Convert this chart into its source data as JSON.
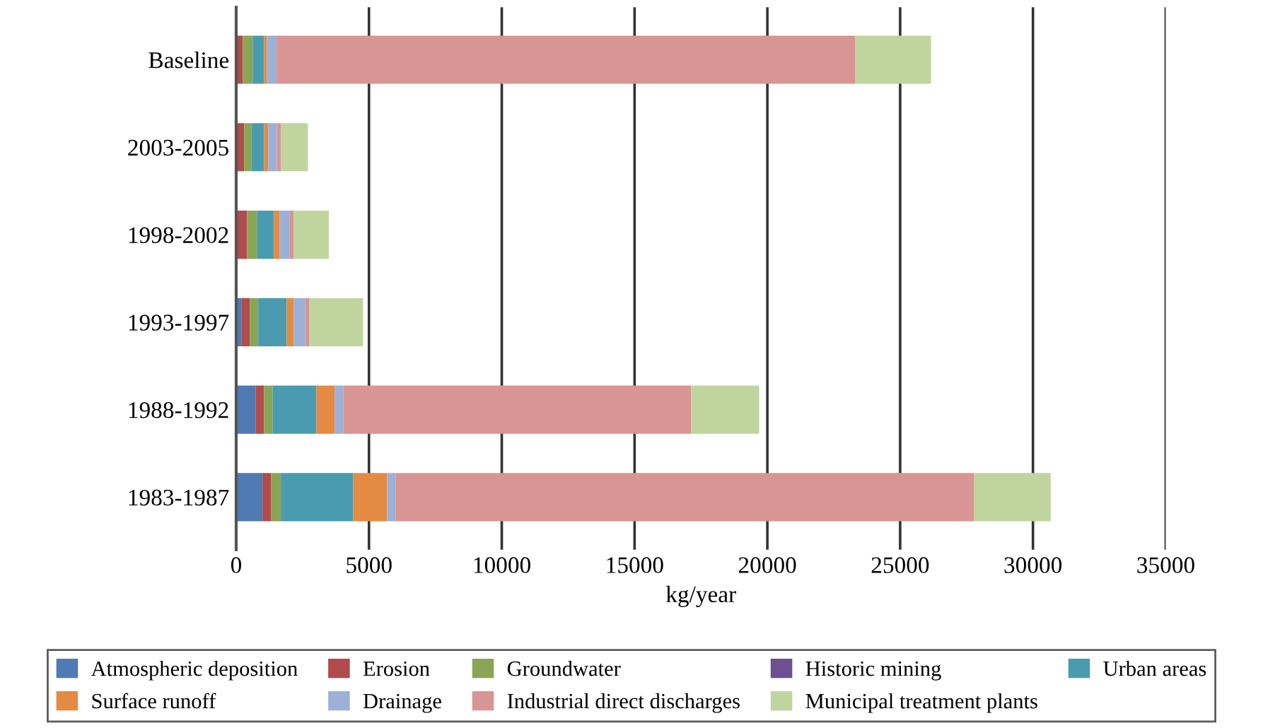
{
  "chart_data": {
    "type": "bar",
    "orientation": "horizontal",
    "stacked": true,
    "categories": [
      "Baseline",
      "2003-2005",
      "1998-2002",
      "1993-1997",
      "1988-1992",
      "1983-1987"
    ],
    "series": [
      {
        "name": "Atmospheric deposition",
        "color": "#4f7ab3",
        "values": [
          0,
          0,
          0,
          210,
          730,
          990
        ]
      },
      {
        "name": "Erosion",
        "color": "#b04c4b",
        "values": [
          250,
          300,
          410,
          300,
          320,
          320
        ]
      },
      {
        "name": "Groundwater",
        "color": "#8aa654",
        "values": [
          370,
          270,
          370,
          320,
          320,
          370
        ]
      },
      {
        "name": "Historic mining",
        "color": "#6d4f92",
        "values": [
          0,
          0,
          0,
          0,
          0,
          0
        ]
      },
      {
        "name": "Urban areas",
        "color": "#4a9bb0",
        "values": [
          430,
          480,
          640,
          1070,
          1650,
          2720
        ]
      },
      {
        "name": "Surface runoff",
        "color": "#e38b42",
        "values": [
          110,
          160,
          210,
          270,
          690,
          1280
        ]
      },
      {
        "name": "Drainage",
        "color": "#9cb0d8",
        "values": [
          360,
          320,
          390,
          430,
          320,
          320
        ]
      },
      {
        "name": "Industrial direct discharges",
        "color": "#d89593",
        "values": [
          21780,
          160,
          140,
          160,
          13100,
          21790
        ]
      },
      {
        "name": "Municipal treatment plants",
        "color": "#c0d59e",
        "values": [
          2860,
          1010,
          1330,
          2020,
          2560,
          2880
        ]
      }
    ],
    "xlabel": "kg/year",
    "xlim": [
      0,
      35000
    ],
    "xticks": [
      0,
      5000,
      10000,
      15000,
      20000,
      25000,
      30000,
      35000
    ],
    "grid": "x",
    "legend": "bottom"
  }
}
